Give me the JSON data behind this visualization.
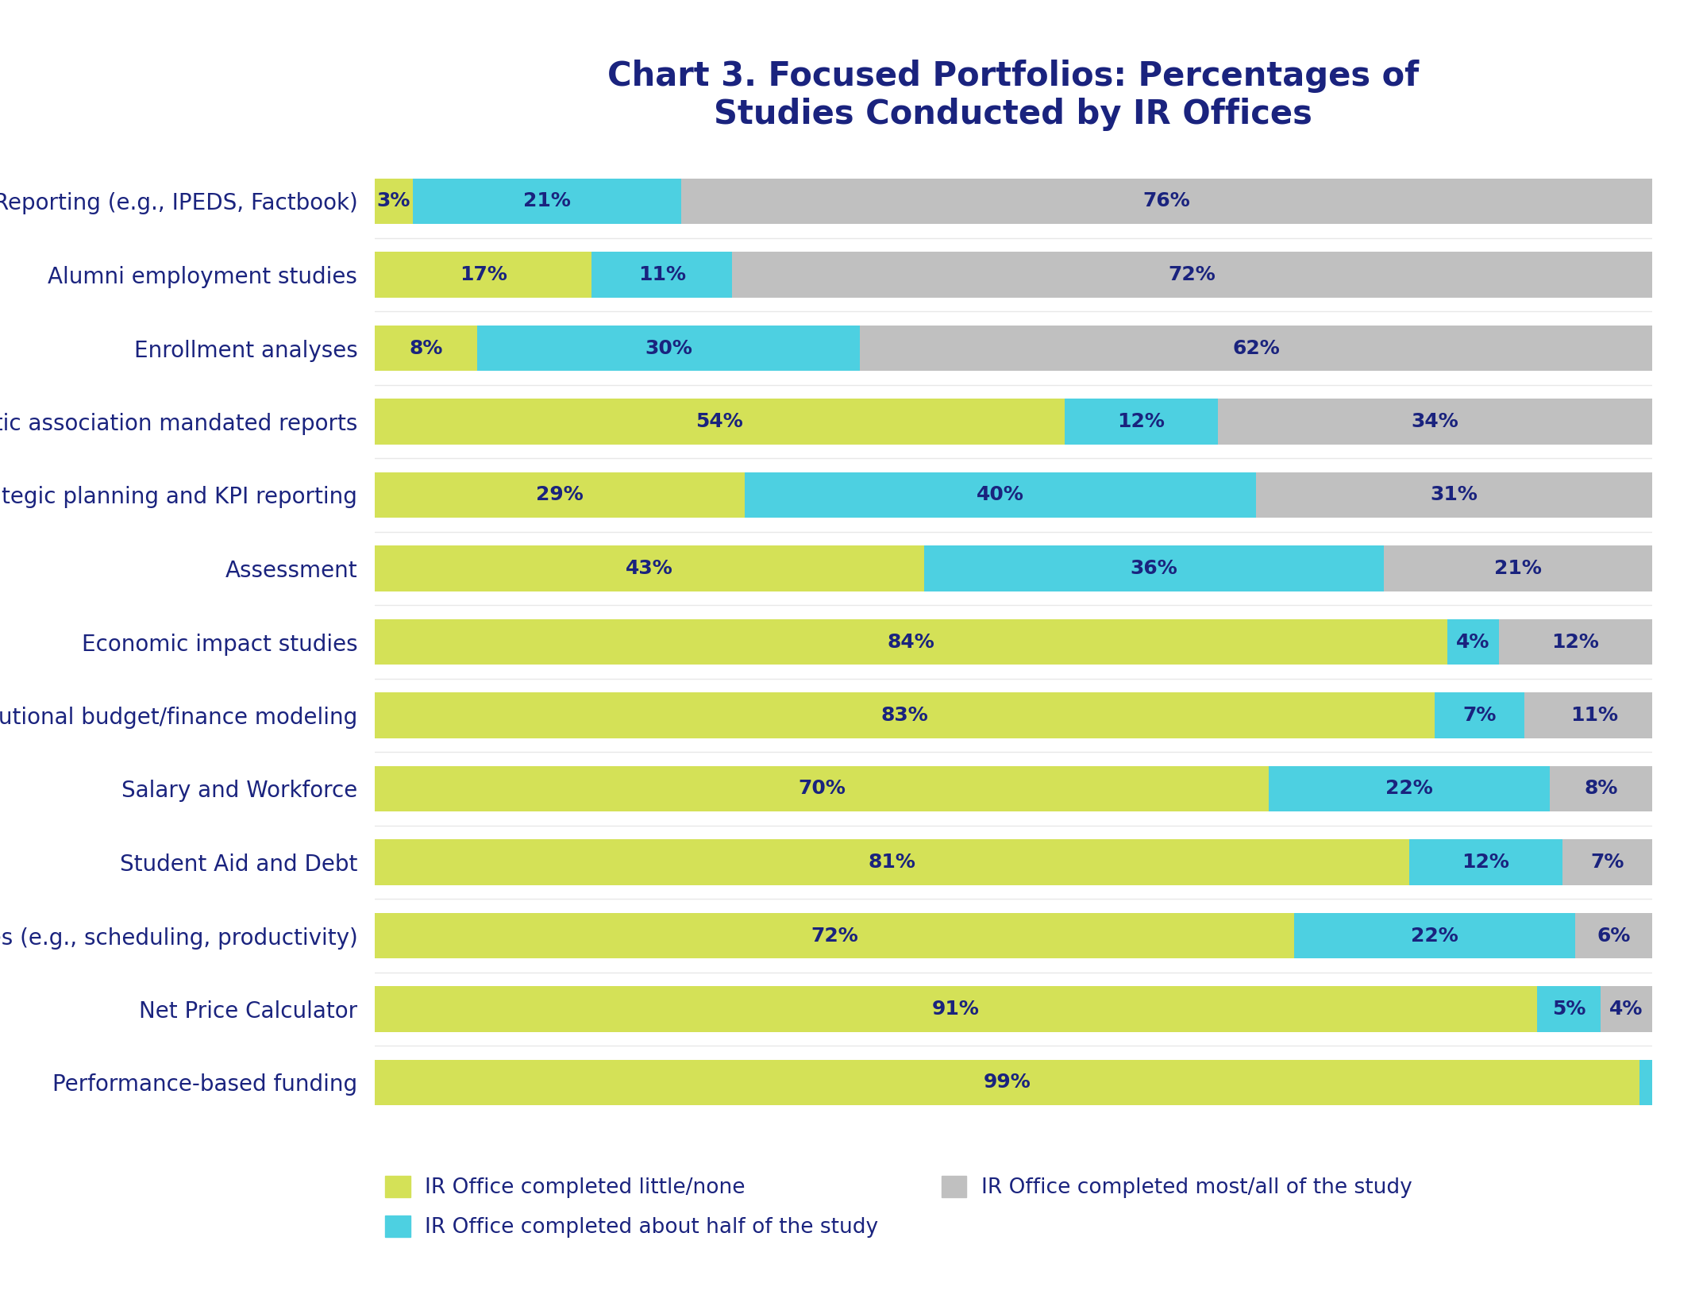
{
  "title": "Chart 3. Focused Portfolios: Percentages of\nStudies Conducted by IR Offices",
  "categories": [
    "Performance-based funding",
    "Net Price Calculator",
    "Academic studies (e.g., scheduling, productivity)",
    "Student Aid and Debt",
    "Salary and Workforce",
    "Institutional budget/finance modeling",
    "Economic impact studies",
    "Assessment",
    "Strategic planning and KPI reporting",
    "Athletic association mandated reports",
    "Enrollment analyses",
    "Alumni employment studies",
    "Reporting (e.g., IPEDS, Factbook)"
  ],
  "little_none": [
    99,
    91,
    72,
    81,
    70,
    83,
    84,
    43,
    29,
    54,
    8,
    17,
    3
  ],
  "about_half": [
    1,
    5,
    22,
    12,
    22,
    7,
    4,
    36,
    40,
    12,
    30,
    11,
    21
  ],
  "most_all": [
    0,
    4,
    6,
    7,
    8,
    11,
    12,
    21,
    31,
    34,
    62,
    72,
    76
  ],
  "color_little_none": "#d4e157",
  "color_about_half": "#4dd0e1",
  "color_most_all": "#c0c0c0",
  "title_color": "#1a237e",
  "label_color": "#1a237e",
  "bar_label_color": "#1a237e",
  "background_color": "#ffffff",
  "legend_labels": [
    "IR Office completed little/none",
    "IR Office completed about half of the study",
    "IR Office completed most/all of the study"
  ],
  "bar_height": 0.62,
  "title_fontsize": 30,
  "label_fontsize": 20,
  "bar_label_fontsize": 18,
  "legend_fontsize": 19
}
